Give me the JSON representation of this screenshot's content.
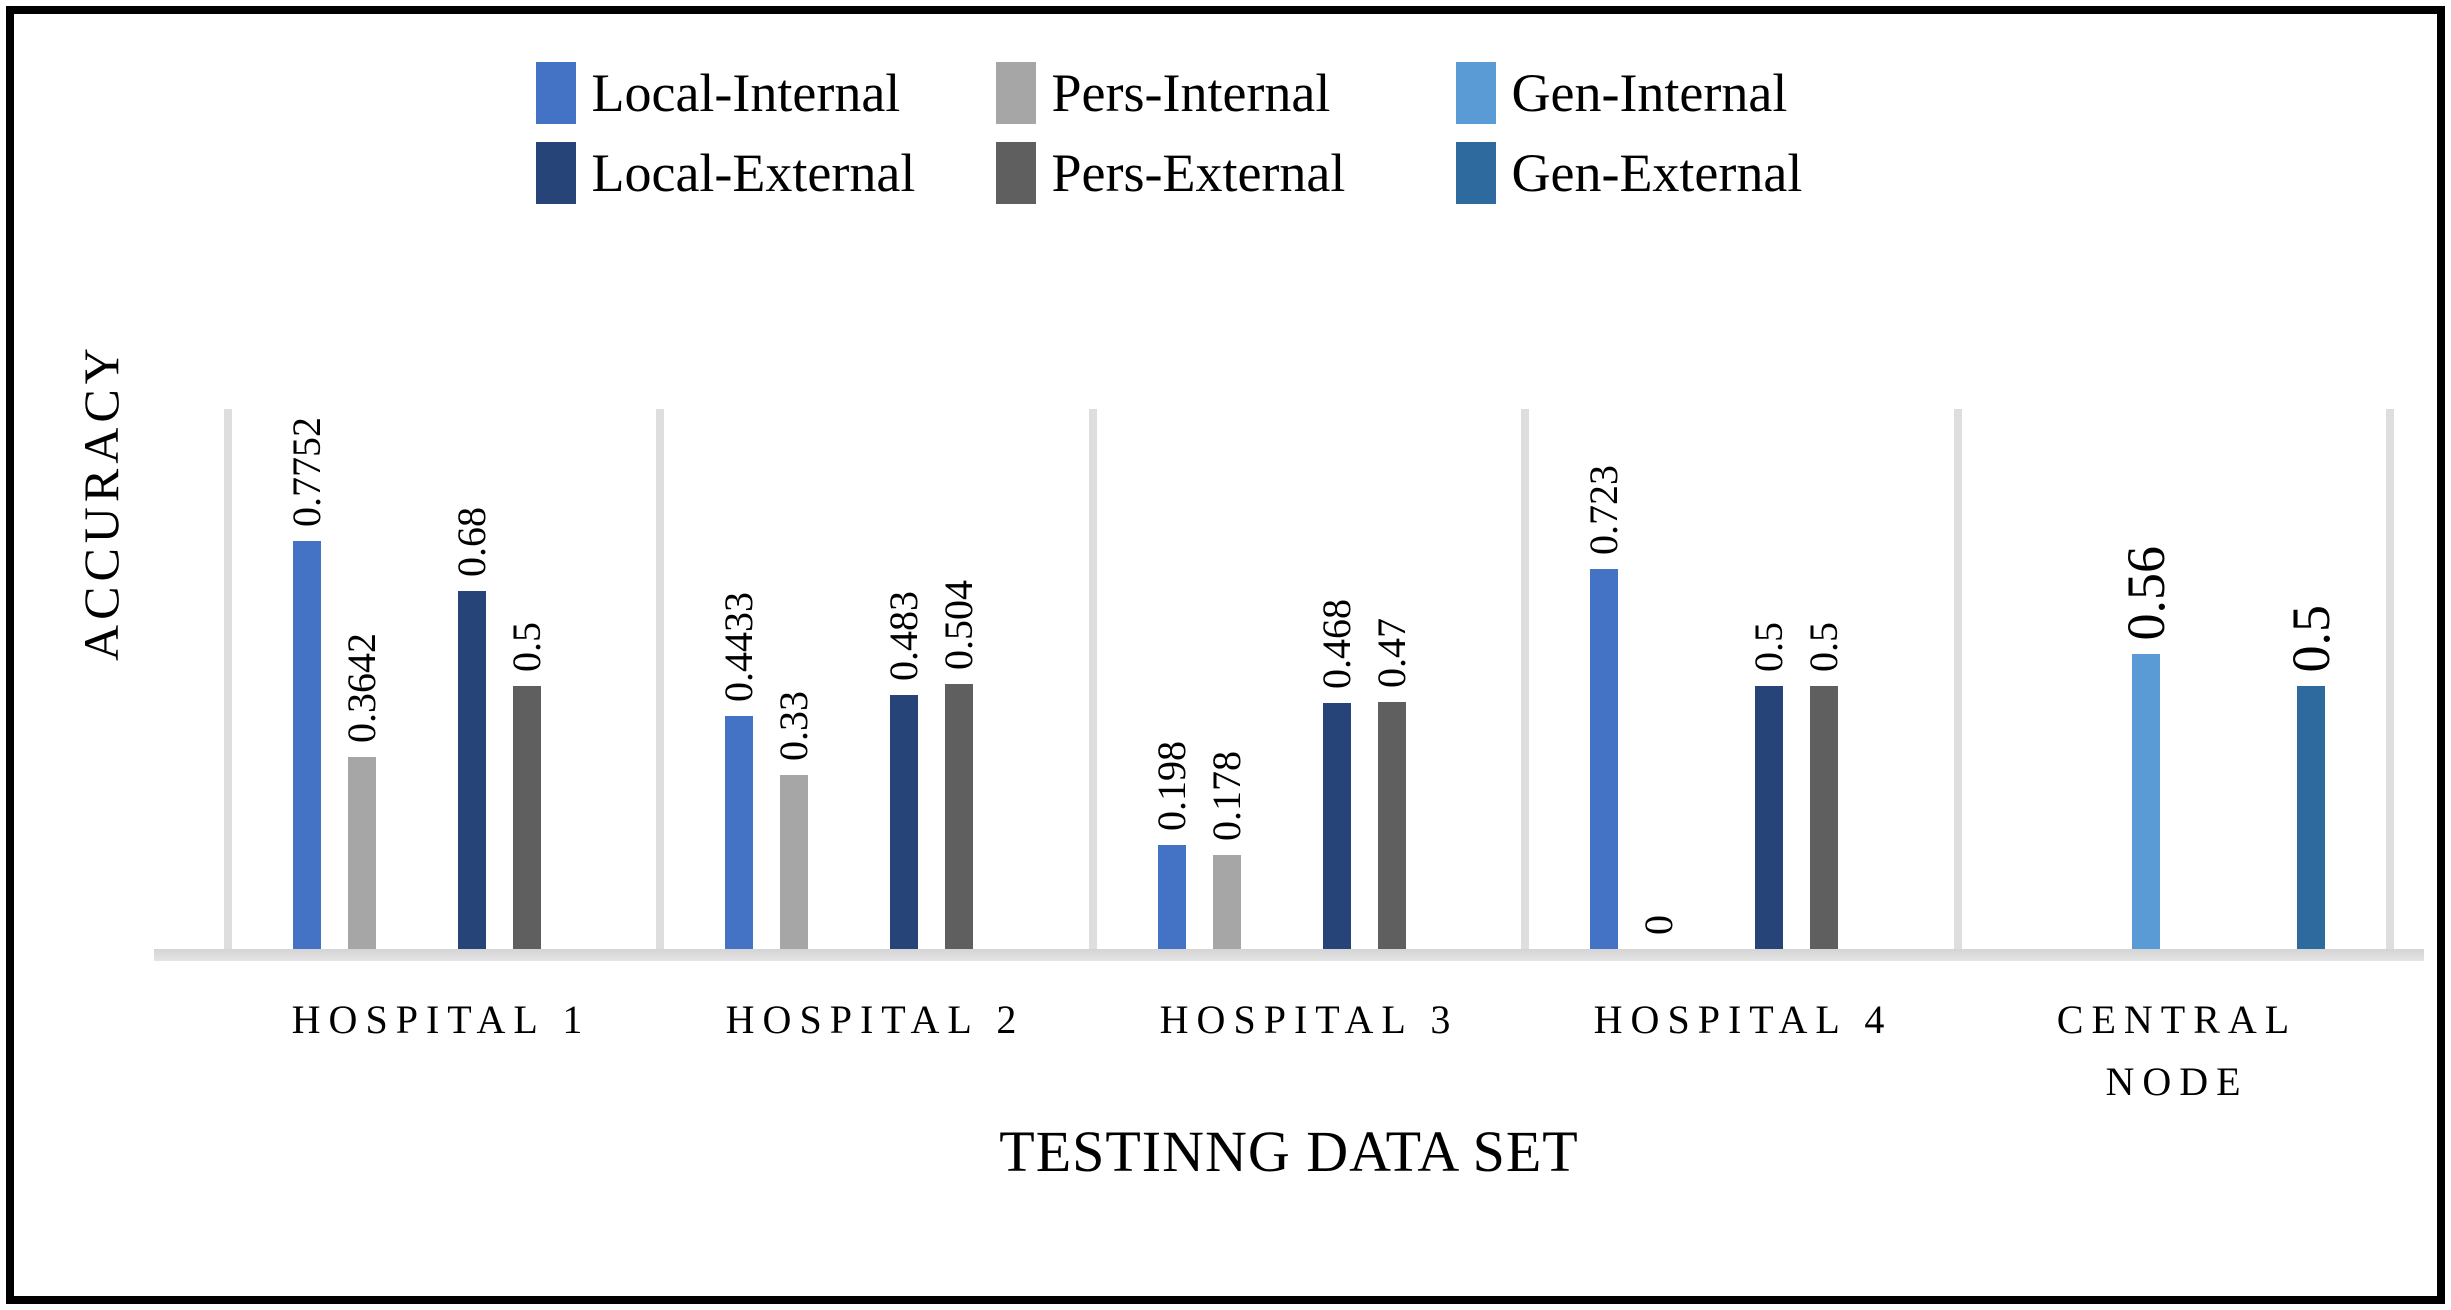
{
  "chart_data": {
    "type": "bar",
    "title": "",
    "xlabel": "TESTINNG DATA SET",
    "ylabel": "ACCURACY",
    "ylim": [
      0,
      1.03
    ],
    "grid": false,
    "legend_position": "top",
    "legend_items_per_row": 3,
    "categories": [
      "HOSPITAL 1",
      "HOSPITAL 2",
      "HOSPITAL 3",
      "HOSPITAL 4",
      "CENTRAL NODE"
    ],
    "big_label_categories": [
      4
    ],
    "separator_color": "#DEDEDE",
    "baseline_color": "#D9D9D9",
    "series": [
      {
        "name": "Local-Internal",
        "color": "#4472C4",
        "slot": 1,
        "values": [
          0.7752,
          0.4433,
          0.198,
          0.723,
          null
        ],
        "labels": [
          "0.7752",
          "0.4433",
          "0.198",
          "0.723",
          ""
        ]
      },
      {
        "name": "Pers-Internal",
        "color": "#A6A6A6",
        "slot": 2,
        "values": [
          0.3642,
          0.33,
          0.178,
          0,
          null
        ],
        "labels": [
          "0.3642",
          "0.33",
          "0.178",
          "0",
          ""
        ]
      },
      {
        "name": "Gen-Internal",
        "color": "#5B9BD5",
        "slot": 3,
        "values": [
          null,
          null,
          null,
          null,
          0.56
        ],
        "labels": [
          "",
          "",
          "",
          "",
          "0.56"
        ]
      },
      {
        "name": "Local-External",
        "color": "#264478",
        "slot": 4,
        "values": [
          0.68,
          0.483,
          0.468,
          0.5,
          null
        ],
        "labels": [
          "0.68",
          "0.483",
          "0.468",
          "0.5",
          ""
        ]
      },
      {
        "name": "Pers-External",
        "color": "#5F5F5F",
        "slot": 5,
        "values": [
          0.5,
          0.504,
          0.47,
          0.5,
          null
        ],
        "labels": [
          "0.5",
          "0.504",
          "0.47",
          "0.5",
          ""
        ]
      },
      {
        "name": "Gen-External",
        "color": "#2E6A9D",
        "slot": 6,
        "values": [
          null,
          null,
          null,
          null,
          0.5
        ],
        "labels": [
          "",
          "",
          "",
          "",
          "0.5"
        ]
      }
    ]
  }
}
